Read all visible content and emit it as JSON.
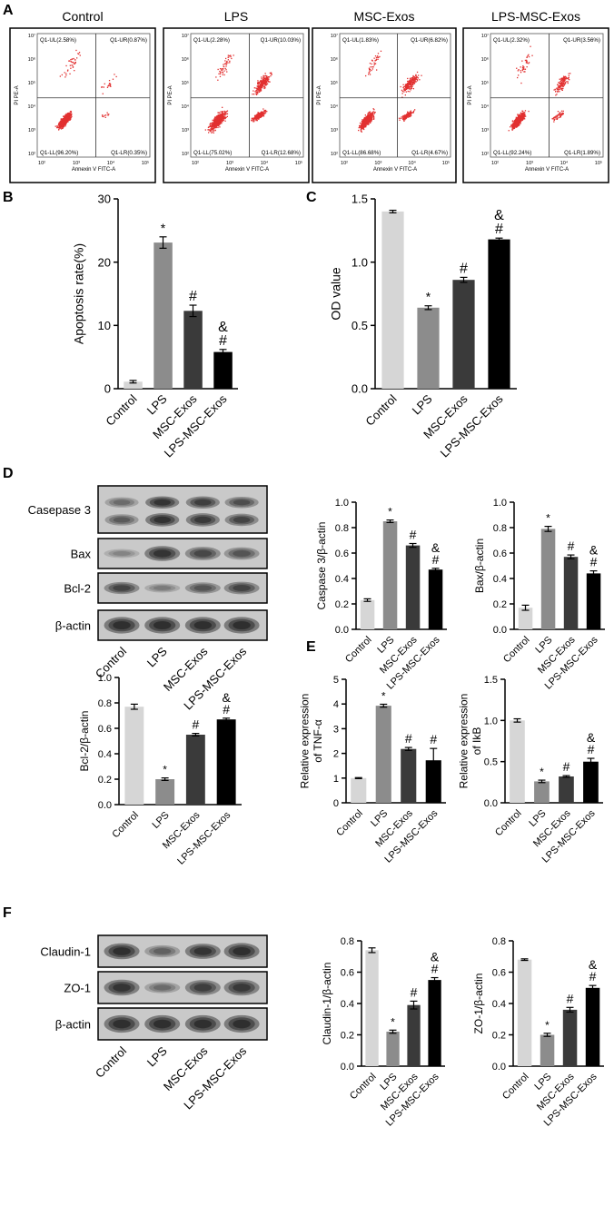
{
  "panel_letters": [
    "A",
    "B",
    "C",
    "D",
    "E",
    "F"
  ],
  "groups": [
    "Control",
    "LPS",
    "MSC-Exos",
    "LPS-MSC-Exos"
  ],
  "colors": {
    "Control": "#d6d6d6",
    "LPS": "#8c8c8c",
    "MSC-Exos": "#3a3a3a",
    "LPS-MSC-Exos": "#000000",
    "dots": "#e23030"
  },
  "flow": {
    "xaxis_label": "Annexin V FITC-A",
    "yaxis_label": "PI PE-A",
    "x_ticks": [
      "10²",
      "10³",
      "10⁴",
      "10⁵"
    ],
    "y_ticks": [
      "10²",
      "10³",
      "10⁴",
      "10⁵",
      "10⁶",
      "10⁷"
    ],
    "plots": [
      {
        "title": "Control",
        "ul": "Q1-UL(2.58%)",
        "ur": "Q1-UR(0.87%)",
        "ll": "Q1-LL(96.20%)",
        "lr": "Q1-LR(0.35%)"
      },
      {
        "title": "LPS",
        "ul": "Q1-UL(2.28%)",
        "ur": "Q1-UR(10.03%)",
        "ll": "Q1-LL(75.02%)",
        "lr": "Q1-LR(12.68%)"
      },
      {
        "title": "MSC-Exos",
        "ul": "Q1-UL(1.83%)",
        "ur": "Q1-UR(6.82%)",
        "ll": "Q1-LL(86.68%)",
        "lr": "Q1-LR(4.67%)"
      },
      {
        "title": "LPS-MSC-Exos",
        "ul": "Q1-UL(2.32%)",
        "ur": "Q1-UR(3.56%)",
        "ll": "Q1-LL(92.24%)",
        "lr": "Q1-LR(1.89%)"
      }
    ]
  },
  "blots": {
    "D": {
      "rows": [
        "Casepase 3",
        "Bax",
        "Bcl-2",
        "β-actin"
      ],
      "lanes": [
        "Control",
        "LPS",
        "MSC-Exos",
        "LPS-MSC-Exos"
      ]
    },
    "F": {
      "rows": [
        "Claudin-1",
        "ZO-1",
        "β-actin"
      ],
      "lanes": [
        "Control",
        "LPS",
        "MSC-Exos",
        "LPS-MSC-Exos"
      ]
    }
  },
  "chart_data": [
    {
      "id": "B",
      "type": "bar",
      "categories": [
        "Control",
        "LPS",
        "MSC-Exos",
        "LPS-MSC-Exos"
      ],
      "values": [
        1.1,
        23.1,
        12.3,
        5.8
      ],
      "errors": [
        0.2,
        0.9,
        0.9,
        0.4
      ],
      "marks": [
        "",
        "*",
        "#",
        "&\n#"
      ],
      "ylabel": "Apoptosis rate(%)",
      "ylim": [
        0,
        30
      ],
      "yticks": [
        "0",
        "10",
        "20",
        "30"
      ]
    },
    {
      "id": "C",
      "type": "bar",
      "categories": [
        "Control",
        "LPS",
        "MSC-Exos",
        "LPS-MSC-Exos"
      ],
      "values": [
        1.4,
        0.64,
        0.86,
        1.18
      ],
      "errors": [
        0.01,
        0.015,
        0.02,
        0.01
      ],
      "marks": [
        "",
        "*",
        "#",
        "&\n#"
      ],
      "ylabel": "OD value",
      "ylim": [
        0,
        1.5
      ],
      "yticks": [
        "0.0",
        "0.5",
        "1.0",
        "1.5"
      ]
    },
    {
      "id": "D1",
      "type": "bar",
      "categories": [
        "Control",
        "LPS",
        "MSC-Exos",
        "LPS-MSC-Exos"
      ],
      "values": [
        0.23,
        0.85,
        0.66,
        0.47
      ],
      "errors": [
        0.01,
        0.01,
        0.015,
        0.01
      ],
      "marks": [
        "",
        "*",
        "#",
        "&\n#"
      ],
      "ylabel": "Caspase 3/β-actin",
      "ylim": [
        0,
        1.0
      ],
      "yticks": [
        "0.0",
        "0.2",
        "0.4",
        "0.6",
        "0.8",
        "1.0"
      ]
    },
    {
      "id": "D2",
      "type": "bar",
      "categories": [
        "Control",
        "LPS",
        "MSC-Exos",
        "LPS-MSC-Exos"
      ],
      "values": [
        0.17,
        0.79,
        0.57,
        0.44
      ],
      "errors": [
        0.02,
        0.02,
        0.015,
        0.02
      ],
      "marks": [
        "",
        "*",
        "#",
        "&\n#"
      ],
      "ylabel": "Bax/β-actin",
      "ylim": [
        0,
        1.0
      ],
      "yticks": [
        "0.0",
        "0.2",
        "0.4",
        "0.6",
        "0.8",
        "1.0"
      ]
    },
    {
      "id": "D3",
      "type": "bar",
      "categories": [
        "Control",
        "LPS",
        "MSC-Exos",
        "LPS-MSC-Exos"
      ],
      "values": [
        0.77,
        0.2,
        0.55,
        0.67
      ],
      "errors": [
        0.02,
        0.01,
        0.01,
        0.01
      ],
      "marks": [
        "",
        "*",
        "#",
        "&\n#"
      ],
      "ylabel": "Bcl-2/β-actin",
      "ylim": [
        0,
        1.0
      ],
      "yticks": [
        "0.0",
        "0.2",
        "0.4",
        "0.6",
        "0.8",
        "1.0"
      ]
    },
    {
      "id": "E1",
      "type": "bar",
      "categories": [
        "Control",
        "LPS",
        "MSC-Exos",
        "LPS-MSC-Exos"
      ],
      "values": [
        1.0,
        3.93,
        2.18,
        1.72
      ],
      "errors": [
        0.02,
        0.06,
        0.06,
        0.48
      ],
      "marks": [
        "",
        "*",
        "#",
        "#"
      ],
      "ylabel": "Relative expression\nof TNF-α",
      "ylim": [
        0,
        5
      ],
      "yticks": [
        "0",
        "1",
        "2",
        "3",
        "4",
        "5"
      ]
    },
    {
      "id": "E2",
      "type": "bar",
      "categories": [
        "Control",
        "LPS",
        "MSC-Exos",
        "LPS-MSC-Exos"
      ],
      "values": [
        1.0,
        0.26,
        0.32,
        0.5
      ],
      "errors": [
        0.02,
        0.015,
        0.01,
        0.04
      ],
      "marks": [
        "",
        "*",
        "#",
        "&\n#"
      ],
      "ylabel": "Relative expression\nof IkB",
      "ylim": [
        0,
        1.5
      ],
      "yticks": [
        "0.0",
        "0.5",
        "1.0",
        "1.5"
      ]
    },
    {
      "id": "F1",
      "type": "bar",
      "categories": [
        "Control",
        "LPS",
        "MSC-Exos",
        "LPS-MSC-Exos"
      ],
      "values": [
        0.74,
        0.22,
        0.39,
        0.55
      ],
      "errors": [
        0.015,
        0.01,
        0.025,
        0.015
      ],
      "marks": [
        "",
        "*",
        "#",
        "&\n#"
      ],
      "ylabel": "Claudin-1/β-actin",
      "ylim": [
        0,
        0.8
      ],
      "yticks": [
        "0.0",
        "0.2",
        "0.4",
        "0.6",
        "0.8"
      ]
    },
    {
      "id": "F2",
      "type": "bar",
      "categories": [
        "Control",
        "LPS",
        "MSC-Exos",
        "LPS-MSC-Exos"
      ],
      "values": [
        0.68,
        0.2,
        0.36,
        0.5
      ],
      "errors": [
        0.005,
        0.01,
        0.015,
        0.015
      ],
      "marks": [
        "",
        "*",
        "#",
        "&\n#"
      ],
      "ylabel": "ZO-1/β-actin",
      "ylim": [
        0,
        0.8
      ],
      "yticks": [
        "0.0",
        "0.2",
        "0.4",
        "0.6",
        "0.8"
      ]
    }
  ]
}
